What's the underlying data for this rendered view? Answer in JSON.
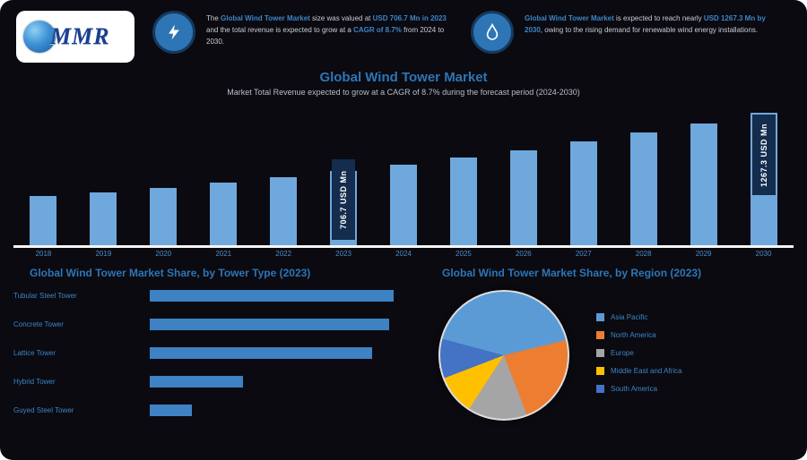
{
  "colors": {
    "accent": "#2e75b6",
    "bar": "#6fa8dc",
    "annotation_bg": "#142c4d",
    "hbar": "#3e82c4",
    "axis": "#f5f5f5"
  },
  "header": {
    "logo_text": "MMR",
    "info_items": [
      {
        "icon": "lightning-icon",
        "segments": [
          {
            "text": "The ",
            "hl": false
          },
          {
            "text": "Global Wind Tower Market",
            "hl": true
          },
          {
            "text": " size was valued at ",
            "hl": false
          },
          {
            "text": "USD 706.7 Mn in 2023",
            "hl": true
          },
          {
            "text": " and the total revenue is expected to grow at a ",
            "hl": false
          },
          {
            "text": "CAGR of 8.7%",
            "hl": true
          },
          {
            "text": " from 2024 to 2030.",
            "hl": false
          }
        ]
      },
      {
        "icon": "flame-icon",
        "segments": [
          {
            "text": "Global Wind Tower Market",
            "hl": true
          },
          {
            "text": " is expected to reach nearly ",
            "hl": false
          },
          {
            "text": "USD 1267.3 Mn by 2030",
            "hl": true
          },
          {
            "text": ", owing to the rising demand for renewable wind energy installations.",
            "hl": false
          }
        ]
      }
    ]
  },
  "chart_data": [
    {
      "type": "bar",
      "title": "Global Wind Tower Market",
      "subtitle": "Market Total Revenue expected to grow at a CAGR of 8.7% during the forecast period (2024-2030)",
      "categories": [
        "2018",
        "2019",
        "2020",
        "2021",
        "2022",
        "2023",
        "2024",
        "2025",
        "2026",
        "2027",
        "2028",
        "2029",
        "2030"
      ],
      "values": [
        466,
        507,
        551,
        599,
        651,
        706.7,
        768,
        835,
        908,
        987,
        1073,
        1166,
        1267.3
      ],
      "unit": "USD Mn",
      "ylim": [
        0,
        1350
      ],
      "annotations": [
        {
          "index": 5,
          "label": "706.7 USD Mn"
        },
        {
          "index": 12,
          "label": "1267.3 USD Mn"
        }
      ]
    },
    {
      "type": "bar-horizontal",
      "title": "Global Wind Tower Market Share, by Tower Type (2023)",
      "categories": [
        "Tubular Steel Tower",
        "Concrete Tower",
        "Lattice Tower",
        "Hybrid Tower",
        "Guyed Steel Tower"
      ],
      "values": [
        29.0,
        28.5,
        26.4,
        11.1,
        5.0
      ],
      "unit": "%"
    },
    {
      "type": "pie",
      "title": "Global Wind Tower Market Share, by Region (2023)",
      "categories": [
        "Asia Pacific",
        "North America",
        "Europe",
        "Middle East and Africa",
        "South America"
      ],
      "values": [
        42,
        23,
        15,
        10,
        10
      ],
      "colors": [
        "#5b9bd5",
        "#ed7d31",
        "#a5a5a5",
        "#ffc000",
        "#4472c4"
      ],
      "legend_position": "right",
      "start_angle_deg": -75
    }
  ]
}
